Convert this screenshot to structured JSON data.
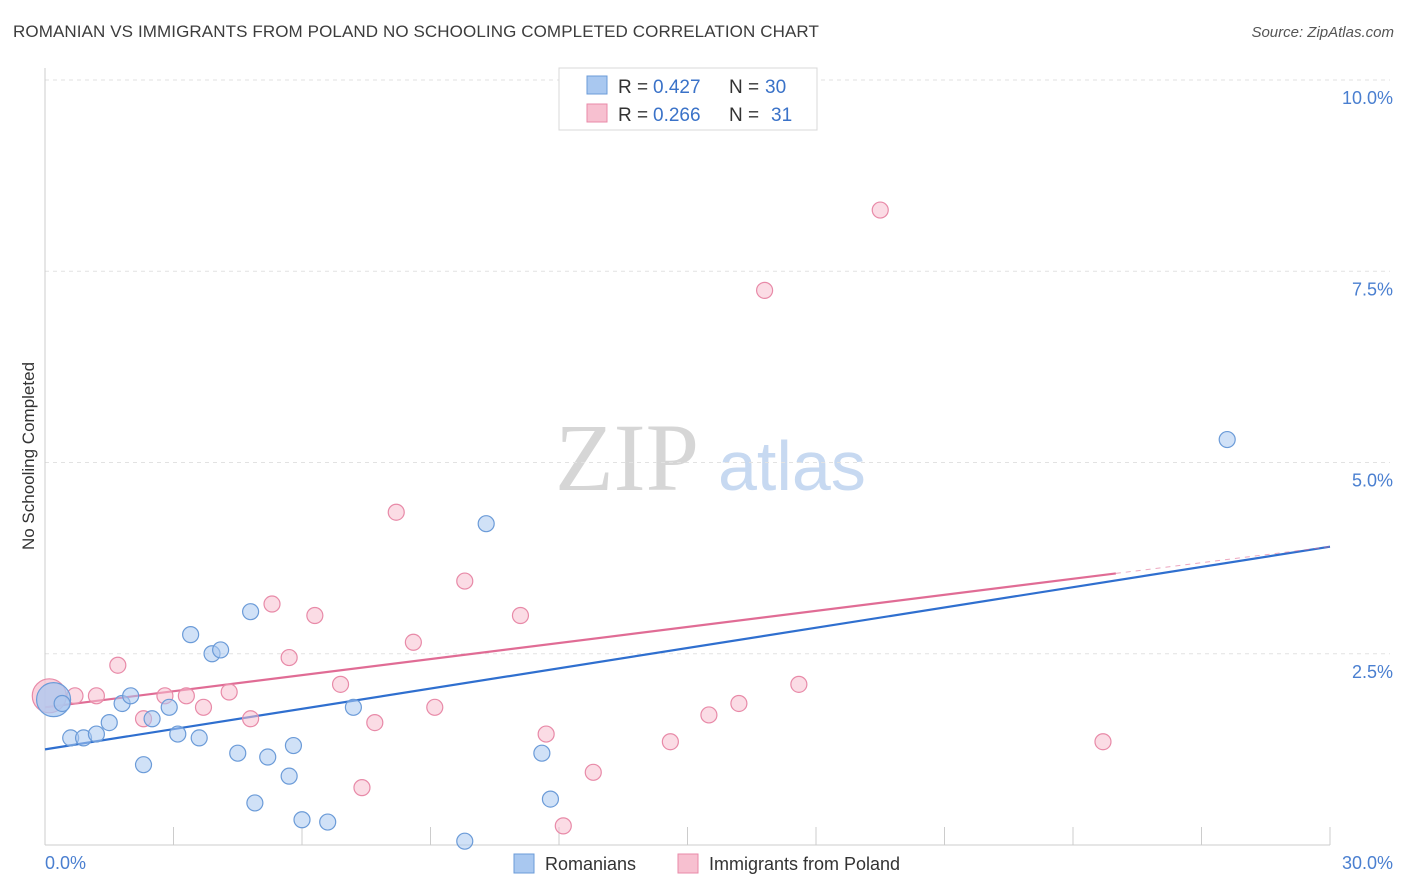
{
  "header": {
    "title": "ROMANIAN VS IMMIGRANTS FROM POLAND NO SCHOOLING COMPLETED CORRELATION CHART",
    "source": "Source: ZipAtlas.com"
  },
  "watermark": {
    "zip": "ZIP",
    "atlas": "atlas"
  },
  "colors": {
    "romanians_fill": "#a9c8f0",
    "romanians_stroke": "#6b9bd8",
    "romanians_line": "#2f6fcf",
    "poland_fill": "#f7c0d0",
    "poland_stroke": "#e88aa8",
    "poland_line": "#e06c95",
    "tick_label": "#4a7fd0"
  },
  "legend": {
    "rows": [
      {
        "r_label": "R = ",
        "r_value": "0.427",
        "n_label": "N = ",
        "n_value": "30"
      },
      {
        "r_label": "R = ",
        "r_value": "0.266",
        "n_label": "N = ",
        "n_value": "31"
      }
    ]
  },
  "chart_data": {
    "type": "scatter",
    "title": "ROMANIAN VS IMMIGRANTS FROM POLAND NO SCHOOLING COMPLETED CORRELATION CHART",
    "xlabel": "",
    "ylabel": "No Schooling Completed",
    "xlim": [
      0,
      30
    ],
    "ylim": [
      0,
      10
    ],
    "x_tick_labels": [
      "0.0%",
      "30.0%"
    ],
    "y_ticks": [
      2.5,
      5.0,
      7.5,
      10.0
    ],
    "y_tick_labels": [
      "2.5%",
      "5.0%",
      "7.5%",
      "10.0%"
    ],
    "grid": true,
    "legend_position": "bottom-center",
    "series": [
      {
        "name": "Romanians",
        "r": 0.427,
        "n": 30,
        "points": [
          {
            "x": 0.2,
            "y": 1.9,
            "big": true
          },
          {
            "x": 0.4,
            "y": 1.85
          },
          {
            "x": 0.6,
            "y": 1.4
          },
          {
            "x": 0.9,
            "y": 1.4
          },
          {
            "x": 1.2,
            "y": 1.45
          },
          {
            "x": 1.5,
            "y": 1.6
          },
          {
            "x": 1.8,
            "y": 1.85
          },
          {
            "x": 2.0,
            "y": 1.95
          },
          {
            "x": 2.3,
            "y": 1.05
          },
          {
            "x": 2.5,
            "y": 1.65
          },
          {
            "x": 2.9,
            "y": 1.8
          },
          {
            "x": 3.1,
            "y": 1.45
          },
          {
            "x": 3.4,
            "y": 2.75
          },
          {
            "x": 3.6,
            "y": 1.4
          },
          {
            "x": 3.9,
            "y": 2.5
          },
          {
            "x": 4.1,
            "y": 2.55
          },
          {
            "x": 4.5,
            "y": 1.2
          },
          {
            "x": 4.8,
            "y": 3.05
          },
          {
            "x": 4.9,
            "y": 0.55
          },
          {
            "x": 5.2,
            "y": 1.15
          },
          {
            "x": 5.7,
            "y": 0.9
          },
          {
            "x": 5.8,
            "y": 1.3
          },
          {
            "x": 6.0,
            "y": 0.33
          },
          {
            "x": 6.6,
            "y": 0.3
          },
          {
            "x": 7.2,
            "y": 1.8
          },
          {
            "x": 9.8,
            "y": 0.05
          },
          {
            "x": 10.3,
            "y": 4.2
          },
          {
            "x": 11.6,
            "y": 1.2
          },
          {
            "x": 11.8,
            "y": 0.6
          },
          {
            "x": 27.6,
            "y": 5.3
          }
        ],
        "trend": {
          "x0": 0,
          "y0": 1.25,
          "x1": 30,
          "y1": 3.9
        }
      },
      {
        "name": "Immigrants from Poland",
        "r": 0.266,
        "n": 31,
        "points": [
          {
            "x": 0.1,
            "y": 1.95,
            "big": true
          },
          {
            "x": 0.7,
            "y": 1.95
          },
          {
            "x": 1.2,
            "y": 1.95
          },
          {
            "x": 1.7,
            "y": 2.35
          },
          {
            "x": 2.3,
            "y": 1.65
          },
          {
            "x": 2.8,
            "y": 1.95
          },
          {
            "x": 3.3,
            "y": 1.95
          },
          {
            "x": 3.7,
            "y": 1.8
          },
          {
            "x": 4.3,
            "y": 2.0
          },
          {
            "x": 4.8,
            "y": 1.65
          },
          {
            "x": 5.3,
            "y": 3.15
          },
          {
            "x": 5.7,
            "y": 2.45
          },
          {
            "x": 6.3,
            "y": 3.0
          },
          {
            "x": 6.9,
            "y": 2.1
          },
          {
            "x": 7.4,
            "y": 0.75
          },
          {
            "x": 7.7,
            "y": 1.6
          },
          {
            "x": 8.2,
            "y": 4.35
          },
          {
            "x": 8.6,
            "y": 2.65
          },
          {
            "x": 9.1,
            "y": 1.8
          },
          {
            "x": 9.8,
            "y": 3.45
          },
          {
            "x": 11.1,
            "y": 3.0
          },
          {
            "x": 11.7,
            "y": 1.45
          },
          {
            "x": 12.1,
            "y": 0.25
          },
          {
            "x": 12.8,
            "y": 0.95
          },
          {
            "x": 14.6,
            "y": 1.35
          },
          {
            "x": 15.5,
            "y": 1.7
          },
          {
            "x": 16.2,
            "y": 1.85
          },
          {
            "x": 16.8,
            "y": 7.25
          },
          {
            "x": 17.6,
            "y": 2.1
          },
          {
            "x": 19.5,
            "y": 8.3
          },
          {
            "x": 24.7,
            "y": 1.35
          }
        ],
        "trend": {
          "x0": 0,
          "y0": 1.8,
          "x1": 25,
          "y1": 3.55,
          "dash_to_x": 30,
          "dash_to_y": 3.9
        }
      }
    ]
  }
}
